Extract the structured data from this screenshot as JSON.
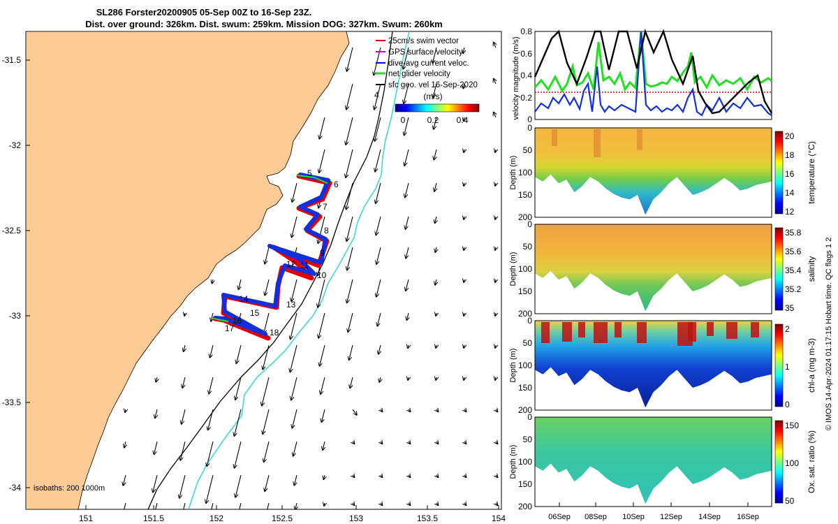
{
  "title": {
    "line1": "SL286 Forster20200905 05-Sep 00Z to 16-Sep 23Z.",
    "line2": "Dist. over ground: 326km. Dist. swum: 259km. Mission DOG: 327km. Swum: 260km"
  },
  "map": {
    "lon_ticks": [
      "151",
      "151.5",
      "152",
      "152.5",
      "153",
      "153.5",
      "154"
    ],
    "lat_ticks": [
      "-31.5",
      "-32",
      "-32.5",
      "-33",
      "-33.5",
      "-34"
    ],
    "legend": [
      {
        "label": "25cm/s swim vector",
        "color": "#e00000"
      },
      {
        "label": "GPS surface velocity",
        "color": "#c000c0"
      },
      {
        "label": "dive-avg current veloc.",
        "color": "#0000ee"
      },
      {
        "label": "net glider velocity",
        "color": "#20e020"
      },
      {
        "label": "sfc geo. vel 16-Sep-2020",
        "color": "#000000"
      }
    ],
    "speed_colorbar": {
      "label": "(m/s)",
      "ticks": [
        "0",
        "0.2",
        "0.4"
      ]
    },
    "isobath_label": "isobaths: 200  1000m",
    "track_day_labels": [
      "4",
      "5",
      "6",
      "7",
      "8",
      "9",
      "10",
      "11",
      "12",
      "13",
      "14",
      "15",
      "16",
      "17",
      "18"
    ],
    "colors": {
      "land": "#fdcb95",
      "isobath_200": "#3cd8d8",
      "isobath_1000": "#000000"
    }
  },
  "panels": {
    "velocity": {
      "ylabel": "velocity magnitude (m/s)",
      "yticks": [
        "0",
        "0.2",
        "0.4",
        "0.6",
        "0.8"
      ]
    },
    "temperature": {
      "ylabel": "Depth (m)",
      "depth_ticks": [
        "0",
        "50",
        "100",
        "150",
        "200"
      ],
      "cb_label": "temperature (°C)",
      "cb_ticks": [
        "12",
        "14",
        "16",
        "18",
        "20"
      ]
    },
    "salinity": {
      "ylabel": "Depth (m)",
      "depth_ticks": [
        "0",
        "50",
        "100",
        "150",
        "200"
      ],
      "cb_label": "salinity",
      "cb_ticks": [
        "35",
        "35.2",
        "35.4",
        "35.6",
        "35.8"
      ]
    },
    "chla": {
      "ylabel": "Depth (m)",
      "depth_ticks": [
        "0",
        "50",
        "100",
        "150",
        "200"
      ],
      "cb_label": "chl-a (mg m-3)",
      "cb_ticks": [
        "0",
        "1",
        "2"
      ]
    },
    "oxygen": {
      "ylabel": "Depth (m)",
      "depth_ticks": [
        "0",
        "50",
        "100",
        "150",
        "200"
      ],
      "cb_label": "Ox. sat. ratio (%)",
      "cb_ticks": [
        "50",
        "100",
        "150"
      ]
    },
    "date_ticks": [
      "06Sep",
      "08Sep",
      "10Sep",
      "12Sep",
      "14Sep",
      "16Sep"
    ]
  },
  "credit": "© IMOS 14-Apr-2024 01:17:15 Hobart time. QC flags 1  2"
}
